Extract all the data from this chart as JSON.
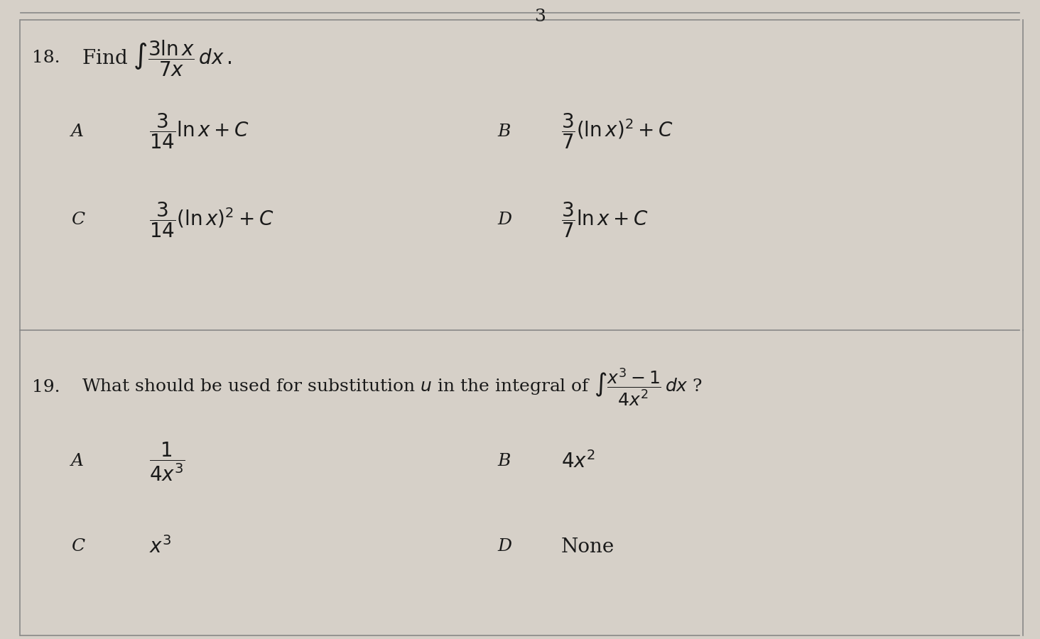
{
  "background_color": "#d6d0c8",
  "top_number": "3",
  "q18_number": "18.",
  "q18_question": "Find $\\int\\dfrac{3\\ln x}{7x}\\,dx$.",
  "q18_A": "$\\dfrac{3}{14}\\ln x+C$",
  "q18_B": "$\\dfrac{3}{7}(\\ln x)^{2}+C$",
  "q18_C": "$\\dfrac{3}{14}(\\ln x)^{2}+C$",
  "q18_D": "$\\dfrac{3}{7}\\ln x+C$",
  "q19_number": "19.",
  "q19_question": "What should be used for substitution $u$ in the integral of $\\int\\dfrac{x^{3}-1}{4x^{2}}\\,dx$ ?",
  "q19_A": "$\\dfrac{1}{4x^{3}}$",
  "q19_B": "$4x^{2}$",
  "q19_C": "$x^{3}$",
  "q19_D": "None",
  "text_color": "#1a1a1a",
  "line_color": "#888888",
  "label_fontsize": 18,
  "answer_fontsize": 20,
  "question_fontsize": 18
}
